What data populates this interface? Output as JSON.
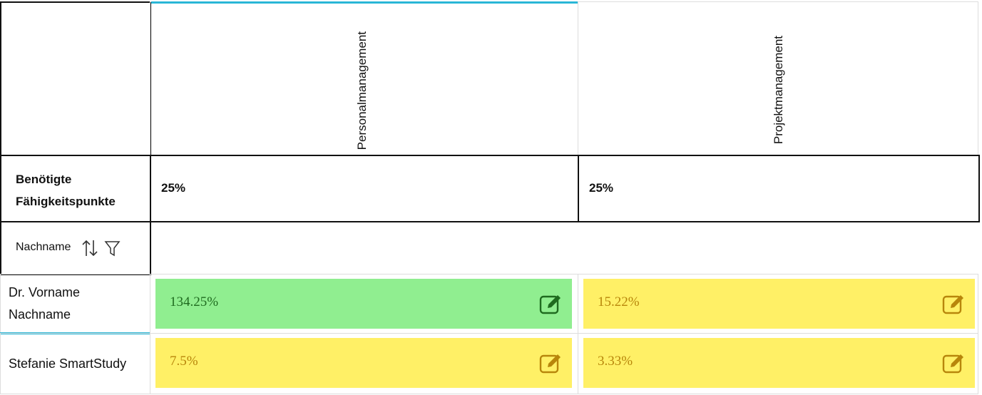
{
  "columns": [
    "Personalmanagement",
    "Projektmanagement"
  ],
  "required": {
    "label": "Benötigte Fähigkeitspunkte",
    "values": [
      "25%",
      "25%"
    ]
  },
  "filter_header": {
    "label": "Nachname"
  },
  "rows": [
    {
      "name": "Dr. Vorname Nachname",
      "cells": [
        {
          "text": "134.25%",
          "color": "#90ee90",
          "text_color": "#1f6b1f"
        },
        {
          "text": "15.22%",
          "color": "#fff066",
          "text_color": "#b8860b"
        }
      ]
    },
    {
      "name": "Stefanie SmartStudy",
      "cells": [
        {
          "text": "7.5%",
          "color": "#fff066",
          "text_color": "#b8860b"
        },
        {
          "text": "3.33%",
          "color": "#fff066",
          "text_color": "#b8860b"
        }
      ]
    }
  ]
}
